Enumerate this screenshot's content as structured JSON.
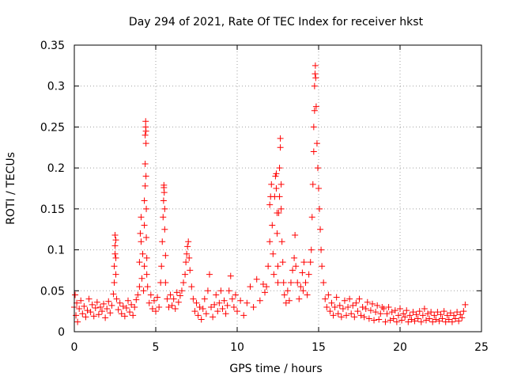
{
  "chart_data": {
    "type": "scatter",
    "title": "Day 294 of 2021, Rate Of TEC Index for receiver hkst",
    "xlabel": "GPS time / hours",
    "ylabel": "ROTI / TECUs",
    "xlim": [
      0,
      25
    ],
    "ylim": [
      0,
      0.35
    ],
    "xticks": [
      0,
      5,
      10,
      15,
      20,
      25
    ],
    "yticks": [
      0,
      0.05,
      0.1,
      0.15,
      0.2,
      0.25,
      0.3,
      0.35
    ],
    "xtick_labels": [
      "0",
      "5",
      "10",
      "15",
      "20",
      "25"
    ],
    "ytick_labels": [
      "0",
      "0.05",
      "0.1",
      "0.15",
      "0.2",
      "0.25",
      "0.3",
      "0.35"
    ],
    "grid": true,
    "marker": "+",
    "color": "#ff0000",
    "series": [
      {
        "points": [
          [
            0.0,
            0.03
          ],
          [
            0.05,
            0.045
          ],
          [
            0.1,
            0.02
          ],
          [
            0.15,
            0.035
          ],
          [
            0.2,
            0.012
          ],
          [
            0.3,
            0.028
          ],
          [
            0.4,
            0.038
          ],
          [
            0.5,
            0.022
          ],
          [
            0.6,
            0.031
          ],
          [
            0.7,
            0.018
          ],
          [
            0.8,
            0.026
          ],
          [
            0.9,
            0.04
          ],
          [
            1.0,
            0.024
          ],
          [
            1.1,
            0.033
          ],
          [
            1.2,
            0.019
          ],
          [
            1.3,
            0.029
          ],
          [
            1.4,
            0.036
          ],
          [
            1.5,
            0.021
          ],
          [
            1.6,
            0.03
          ],
          [
            1.7,
            0.025
          ],
          [
            1.8,
            0.034
          ],
          [
            1.9,
            0.017
          ],
          [
            2.0,
            0.028
          ],
          [
            2.1,
            0.037
          ],
          [
            2.2,
            0.023
          ],
          [
            2.3,
            0.032
          ],
          [
            2.4,
            0.046
          ],
          [
            2.45,
            0.06
          ],
          [
            2.45,
            0.08
          ],
          [
            2.5,
            0.095
          ],
          [
            2.5,
            0.105
          ],
          [
            2.5,
            0.118
          ],
          [
            2.55,
            0.07
          ],
          [
            2.55,
            0.09
          ],
          [
            2.55,
            0.112
          ],
          [
            2.6,
            0.04
          ],
          [
            2.7,
            0.027
          ],
          [
            2.8,
            0.035
          ],
          [
            2.9,
            0.022
          ],
          [
            3.0,
            0.031
          ],
          [
            3.1,
            0.019
          ],
          [
            3.2,
            0.029
          ],
          [
            3.3,
            0.038
          ],
          [
            3.4,
            0.024
          ],
          [
            3.5,
            0.033
          ],
          [
            3.6,
            0.02
          ],
          [
            3.7,
            0.03
          ],
          [
            3.8,
            0.039
          ],
          [
            3.9,
            0.045
          ],
          [
            4.0,
            0.055
          ],
          [
            4.0,
            0.085
          ],
          [
            4.05,
            0.12
          ],
          [
            4.1,
            0.14
          ],
          [
            4.1,
            0.11
          ],
          [
            4.15,
            0.065
          ],
          [
            4.2,
            0.095
          ],
          [
            4.25,
            0.05
          ],
          [
            4.3,
            0.08
          ],
          [
            4.3,
            0.13
          ],
          [
            4.3,
            0.16
          ],
          [
            4.35,
            0.178
          ],
          [
            4.35,
            0.205
          ],
          [
            4.35,
            0.24
          ],
          [
            4.38,
            0.25
          ],
          [
            4.38,
            0.257
          ],
          [
            4.4,
            0.245
          ],
          [
            4.4,
            0.23
          ],
          [
            4.4,
            0.19
          ],
          [
            4.42,
            0.15
          ],
          [
            4.42,
            0.115
          ],
          [
            4.45,
            0.09
          ],
          [
            4.45,
            0.07
          ],
          [
            4.5,
            0.055
          ],
          [
            4.6,
            0.035
          ],
          [
            4.7,
            0.045
          ],
          [
            4.8,
            0.028
          ],
          [
            4.9,
            0.038
          ],
          [
            5.0,
            0.025
          ],
          [
            5.1,
            0.042
          ],
          [
            5.2,
            0.03
          ],
          [
            5.3,
            0.06
          ],
          [
            5.35,
            0.08
          ],
          [
            5.4,
            0.11
          ],
          [
            5.45,
            0.14
          ],
          [
            5.48,
            0.16
          ],
          [
            5.5,
            0.176
          ],
          [
            5.5,
            0.179
          ],
          [
            5.52,
            0.17
          ],
          [
            5.55,
            0.15
          ],
          [
            5.55,
            0.125
          ],
          [
            5.6,
            0.093
          ],
          [
            5.6,
            0.06
          ],
          [
            5.7,
            0.04
          ],
          [
            5.8,
            0.03
          ],
          [
            5.9,
            0.045
          ],
          [
            6.0,
            0.032
          ],
          [
            6.1,
            0.04
          ],
          [
            6.2,
            0.028
          ],
          [
            6.3,
            0.048
          ],
          [
            6.4,
            0.036
          ],
          [
            6.5,
            0.044
          ],
          [
            6.6,
            0.05
          ],
          [
            6.7,
            0.06
          ],
          [
            6.8,
            0.07
          ],
          [
            6.85,
            0.085
          ],
          [
            6.9,
            0.095
          ],
          [
            6.95,
            0.104
          ],
          [
            7.0,
            0.11
          ],
          [
            7.05,
            0.09
          ],
          [
            7.1,
            0.075
          ],
          [
            7.2,
            0.055
          ],
          [
            7.3,
            0.04
          ],
          [
            7.4,
            0.025
          ],
          [
            7.5,
            0.035
          ],
          [
            7.6,
            0.02
          ],
          [
            7.7,
            0.03
          ],
          [
            7.8,
            0.015
          ],
          [
            7.9,
            0.028
          ],
          [
            8.0,
            0.04
          ],
          [
            8.1,
            0.022
          ],
          [
            8.2,
            0.05
          ],
          [
            8.3,
            0.07
          ],
          [
            8.4,
            0.03
          ],
          [
            8.5,
            0.018
          ],
          [
            8.6,
            0.033
          ],
          [
            8.7,
            0.045
          ],
          [
            8.8,
            0.025
          ],
          [
            8.9,
            0.035
          ],
          [
            9.0,
            0.05
          ],
          [
            9.1,
            0.028
          ],
          [
            9.2,
            0.038
          ],
          [
            9.3,
            0.022
          ],
          [
            9.4,
            0.032
          ],
          [
            9.5,
            0.05
          ],
          [
            9.6,
            0.068
          ],
          [
            9.7,
            0.04
          ],
          [
            9.8,
            0.03
          ],
          [
            9.9,
            0.045
          ],
          [
            10.0,
            0.025
          ],
          [
            10.2,
            0.038
          ],
          [
            10.4,
            0.02
          ],
          [
            10.6,
            0.035
          ],
          [
            10.8,
            0.055
          ],
          [
            11.0,
            0.03
          ],
          [
            11.2,
            0.064
          ],
          [
            11.4,
            0.038
          ],
          [
            11.6,
            0.058
          ],
          [
            11.7,
            0.048
          ],
          [
            11.8,
            0.055
          ],
          [
            11.9,
            0.08
          ],
          [
            12.0,
            0.11
          ],
          [
            12.0,
            0.155
          ],
          [
            12.05,
            0.165
          ],
          [
            12.1,
            0.18
          ],
          [
            12.15,
            0.13
          ],
          [
            12.2,
            0.095
          ],
          [
            12.25,
            0.07
          ],
          [
            12.3,
            0.165
          ],
          [
            12.35,
            0.19
          ],
          [
            12.4,
            0.193
          ],
          [
            12.4,
            0.175
          ],
          [
            12.45,
            0.145
          ],
          [
            12.45,
            0.12
          ],
          [
            12.5,
            0.08
          ],
          [
            12.5,
            0.06
          ],
          [
            12.55,
            0.145
          ],
          [
            12.6,
            0.165
          ],
          [
            12.6,
            0.2
          ],
          [
            12.65,
            0.225
          ],
          [
            12.65,
            0.236
          ],
          [
            12.7,
            0.18
          ],
          [
            12.7,
            0.15
          ],
          [
            12.75,
            0.11
          ],
          [
            12.8,
            0.085
          ],
          [
            12.85,
            0.06
          ],
          [
            12.9,
            0.045
          ],
          [
            13.0,
            0.035
          ],
          [
            13.1,
            0.05
          ],
          [
            13.2,
            0.038
          ],
          [
            13.3,
            0.06
          ],
          [
            13.4,
            0.075
          ],
          [
            13.5,
            0.09
          ],
          [
            13.55,
            0.118
          ],
          [
            13.6,
            0.08
          ],
          [
            13.7,
            0.06
          ],
          [
            13.8,
            0.04
          ],
          [
            13.9,
            0.055
          ],
          [
            14.0,
            0.072
          ],
          [
            14.05,
            0.05
          ],
          [
            14.1,
            0.085
          ],
          [
            14.2,
            0.06
          ],
          [
            14.3,
            0.045
          ],
          [
            14.4,
            0.07
          ],
          [
            14.5,
            0.085
          ],
          [
            14.55,
            0.1
          ],
          [
            14.6,
            0.14
          ],
          [
            14.65,
            0.18
          ],
          [
            14.7,
            0.22
          ],
          [
            14.7,
            0.25
          ],
          [
            14.75,
            0.27
          ],
          [
            14.75,
            0.3
          ],
          [
            14.78,
            0.315
          ],
          [
            14.8,
            0.325
          ],
          [
            14.82,
            0.31
          ],
          [
            14.85,
            0.275
          ],
          [
            14.9,
            0.23
          ],
          [
            14.95,
            0.2
          ],
          [
            15.0,
            0.175
          ],
          [
            15.05,
            0.15
          ],
          [
            15.1,
            0.125
          ],
          [
            15.15,
            0.1
          ],
          [
            15.2,
            0.08
          ],
          [
            15.3,
            0.06
          ],
          [
            15.4,
            0.04
          ],
          [
            15.5,
            0.03
          ],
          [
            15.6,
            0.045
          ],
          [
            15.7,
            0.025
          ],
          [
            15.8,
            0.035
          ],
          [
            15.9,
            0.02
          ],
          [
            16.0,
            0.03
          ],
          [
            16.1,
            0.042
          ],
          [
            16.2,
            0.022
          ],
          [
            16.3,
            0.032
          ],
          [
            16.4,
            0.018
          ],
          [
            16.5,
            0.028
          ],
          [
            16.6,
            0.038
          ],
          [
            16.7,
            0.02
          ],
          [
            16.8,
            0.03
          ],
          [
            16.9,
            0.04
          ],
          [
            17.0,
            0.022
          ],
          [
            17.1,
            0.032
          ],
          [
            17.2,
            0.018
          ],
          [
            17.3,
            0.035
          ],
          [
            17.4,
            0.025
          ],
          [
            17.5,
            0.04
          ],
          [
            17.6,
            0.02
          ],
          [
            17.7,
            0.03
          ],
          [
            17.8,
            0.018
          ],
          [
            17.9,
            0.028
          ],
          [
            18.0,
            0.036
          ],
          [
            18.1,
            0.016
          ],
          [
            18.2,
            0.026
          ],
          [
            18.3,
            0.034
          ],
          [
            18.4,
            0.014
          ],
          [
            18.5,
            0.024
          ],
          [
            18.6,
            0.032
          ],
          [
            18.7,
            0.015
          ],
          [
            18.8,
            0.022
          ],
          [
            18.9,
            0.03
          ],
          [
            19.0,
            0.028
          ],
          [
            19.1,
            0.012
          ],
          [
            19.2,
            0.022
          ],
          [
            19.3,
            0.03
          ],
          [
            19.4,
            0.014
          ],
          [
            19.5,
            0.024
          ],
          [
            19.6,
            0.016
          ],
          [
            19.7,
            0.026
          ],
          [
            19.8,
            0.012
          ],
          [
            19.9,
            0.02
          ],
          [
            20.0,
            0.028
          ],
          [
            20.1,
            0.014
          ],
          [
            20.2,
            0.022
          ],
          [
            20.3,
            0.018
          ],
          [
            20.4,
            0.026
          ],
          [
            20.5,
            0.012
          ],
          [
            20.6,
            0.02
          ],
          [
            20.7,
            0.015
          ],
          [
            20.8,
            0.024
          ],
          [
            20.9,
            0.013
          ],
          [
            21.0,
            0.021
          ],
          [
            21.1,
            0.016
          ],
          [
            21.2,
            0.025
          ],
          [
            21.3,
            0.012
          ],
          [
            21.4,
            0.02
          ],
          [
            21.5,
            0.028
          ],
          [
            21.6,
            0.014
          ],
          [
            21.7,
            0.022
          ],
          [
            21.8,
            0.016
          ],
          [
            21.9,
            0.024
          ],
          [
            22.0,
            0.012
          ],
          [
            22.1,
            0.02
          ],
          [
            22.2,
            0.015
          ],
          [
            22.3,
            0.024
          ],
          [
            22.4,
            0.013
          ],
          [
            22.5,
            0.021
          ],
          [
            22.6,
            0.016
          ],
          [
            22.7,
            0.025
          ],
          [
            22.8,
            0.012
          ],
          [
            22.9,
            0.02
          ],
          [
            23.0,
            0.015
          ],
          [
            23.1,
            0.023
          ],
          [
            23.2,
            0.012
          ],
          [
            23.3,
            0.02
          ],
          [
            23.4,
            0.016
          ],
          [
            23.5,
            0.024
          ],
          [
            23.6,
            0.013
          ],
          [
            23.7,
            0.021
          ],
          [
            23.8,
            0.017
          ],
          [
            23.9,
            0.025
          ],
          [
            24.0,
            0.033
          ]
        ]
      }
    ]
  }
}
